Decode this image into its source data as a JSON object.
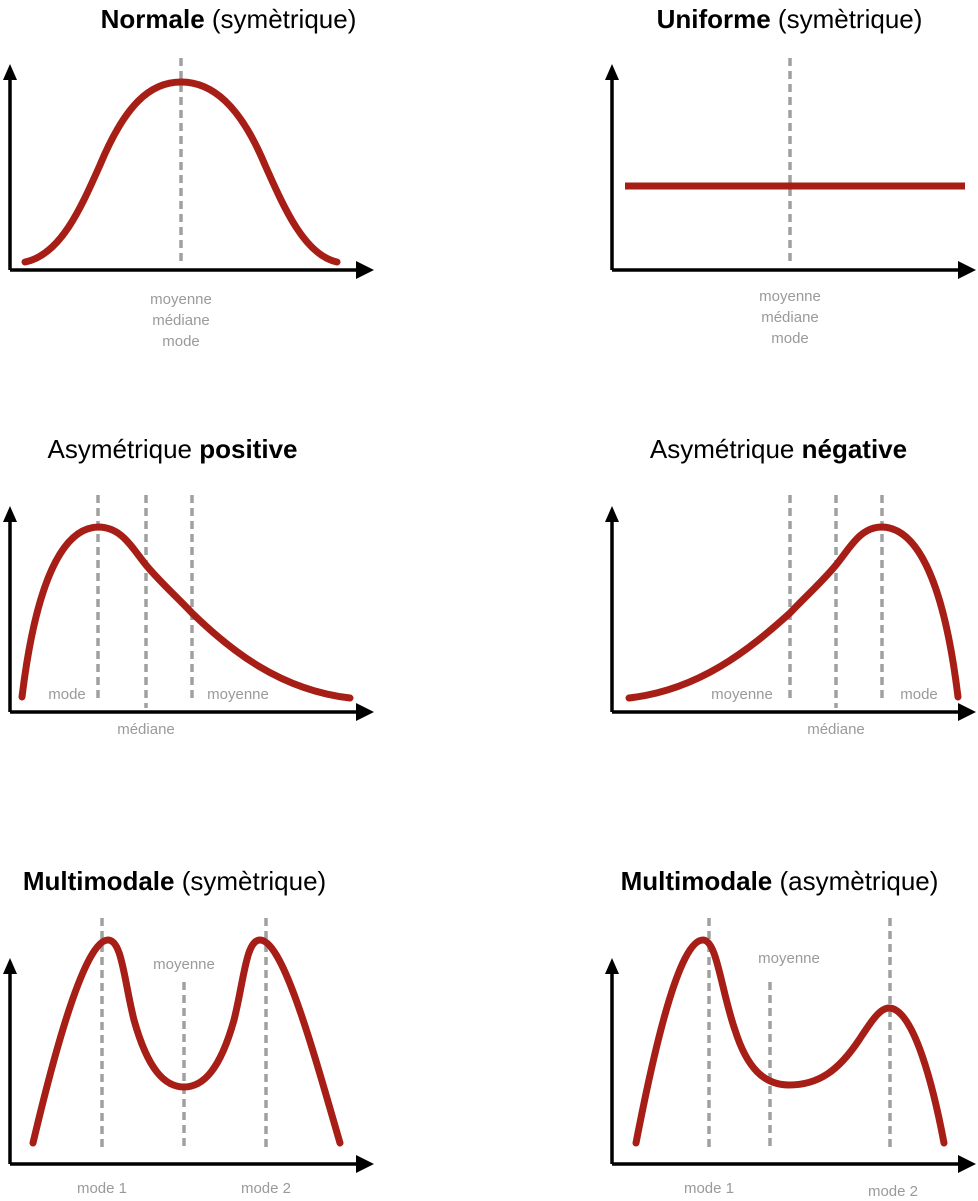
{
  "panels": {
    "normal": {
      "title": {
        "bold": "Normale",
        "rest": " (symètrique)",
        "bold_first": true
      },
      "labels": {
        "moyenne": "moyenne",
        "mediane": "médiane",
        "mode": "mode"
      }
    },
    "uniform": {
      "title": {
        "bold": "Uniforme",
        "rest": " (symètrique)",
        "bold_first": true
      },
      "labels": {
        "moyenne": "moyenne",
        "mediane": "médiane",
        "mode": "mode"
      }
    },
    "pos_skew": {
      "title": {
        "plain": "Asymétrique ",
        "bold": "positive",
        "bold_first": false
      },
      "labels": {
        "mode": "mode",
        "mediane": "médiane",
        "moyenne": "moyenne"
      }
    },
    "neg_skew": {
      "title": {
        "plain": "Asymétrique ",
        "bold": "négative",
        "bold_first": false
      },
      "labels": {
        "moyenne": "moyenne",
        "mediane": "médiane",
        "mode": "mode"
      }
    },
    "multi_sym": {
      "title": {
        "bold": "Multimodale",
        "rest": " (symètrique)",
        "bold_first": true
      },
      "labels": {
        "moyenne": "moyenne",
        "mode1": "mode 1",
        "mode2": "mode 2"
      }
    },
    "multi_asym": {
      "title": {
        "bold": "Multimodale",
        "rest": " (asymètrique)",
        "bold_first": true
      },
      "labels": {
        "moyenne": "moyenne",
        "mode1": "mode 1",
        "mode2": "mode 2"
      }
    }
  },
  "colors": {
    "curve": "#a61e16",
    "guide": "#a0a0a0",
    "axis": "#000000",
    "label": "#9a9a9a"
  }
}
